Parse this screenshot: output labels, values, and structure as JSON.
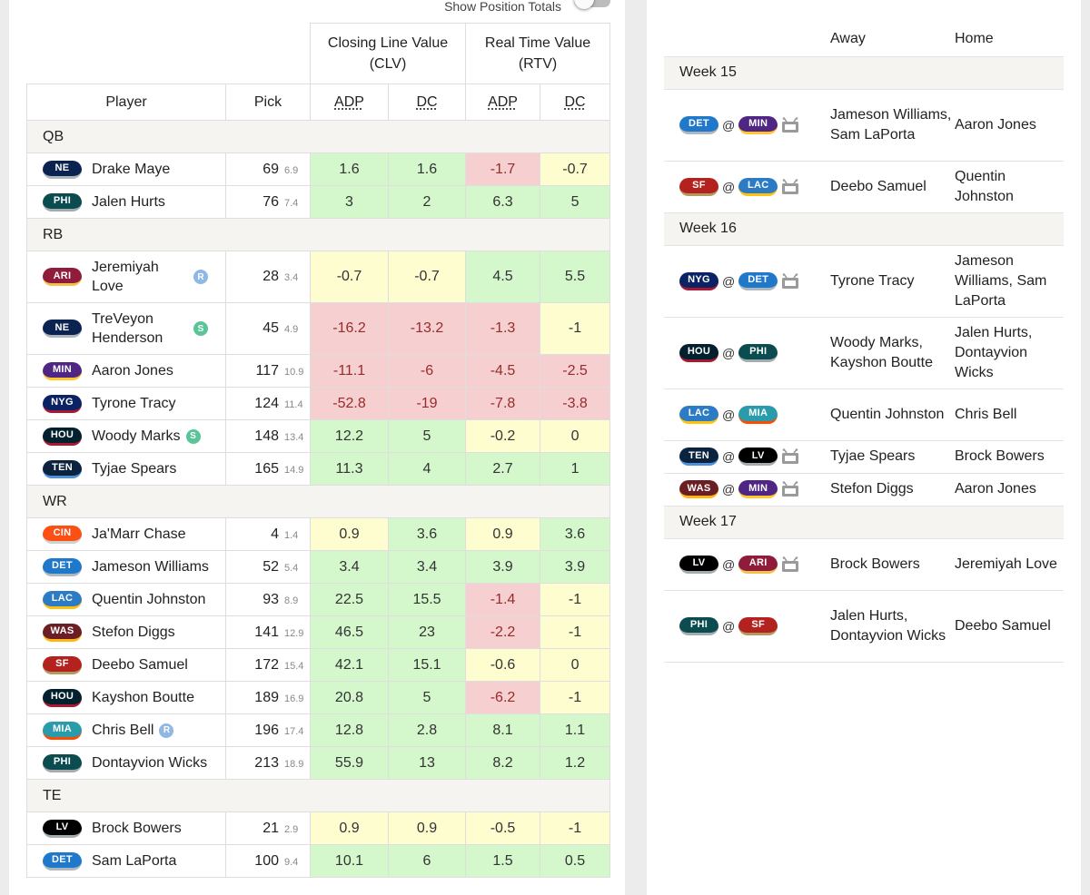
{
  "toggle": {
    "label": "Show Position Totals",
    "on": false
  },
  "players_table": {
    "group_headers": {
      "clv_line1": "Closing Line Value",
      "clv_line2": "(CLV)",
      "rtv_line1": "Real Time Value",
      "rtv_line2": "(RTV)"
    },
    "columns": {
      "player": "Player",
      "pick": "Pick",
      "clv_adp": "ADP",
      "clv_dc": "DC",
      "rtv_adp": "ADP",
      "rtv_dc": "DC"
    },
    "sections": [
      {
        "position": "QB",
        "players": [
          {
            "team": "NE",
            "name": "Drake Maye",
            "pick": "69",
            "round": "6.9",
            "clv_adp": "1.6",
            "clv_dc": "1.6",
            "rtv_adp": "-1.7",
            "rtv_dc": "-0.7",
            "c": [
              "g",
              "g",
              "r",
              "y"
            ]
          },
          {
            "team": "PHI",
            "name": "Jalen Hurts",
            "pick": "76",
            "round": "7.4",
            "clv_adp": "3",
            "clv_dc": "2",
            "rtv_adp": "6.3",
            "rtv_dc": "5",
            "c": [
              "g",
              "g",
              "g",
              "g"
            ]
          }
        ]
      },
      {
        "position": "RB",
        "players": [
          {
            "team": "ARI",
            "name": "Jeremiyah Love",
            "badge": "R",
            "pick": "28",
            "round": "3.4",
            "clv_adp": "-0.7",
            "clv_dc": "-0.7",
            "rtv_adp": "4.5",
            "rtv_dc": "5.5",
            "c": [
              "y",
              "y",
              "g",
              "g"
            ]
          },
          {
            "team": "NE",
            "name": "TreVeyon Henderson",
            "badge": "S",
            "pick": "45",
            "round": "4.9",
            "clv_adp": "-16.2",
            "clv_dc": "-13.2",
            "rtv_adp": "-1.3",
            "rtv_dc": "-1",
            "c": [
              "r",
              "r",
              "r",
              "y"
            ]
          },
          {
            "team": "MIN",
            "name": "Aaron Jones",
            "pick": "117",
            "round": "10.9",
            "clv_adp": "-11.1",
            "clv_dc": "-6",
            "rtv_adp": "-4.5",
            "rtv_dc": "-2.5",
            "c": [
              "r",
              "r",
              "r",
              "r"
            ]
          },
          {
            "team": "NYG",
            "name": "Tyrone Tracy",
            "pick": "124",
            "round": "11.4",
            "clv_adp": "-52.8",
            "clv_dc": "-19",
            "rtv_adp": "-7.8",
            "rtv_dc": "-3.8",
            "c": [
              "r",
              "r",
              "r",
              "r"
            ]
          },
          {
            "team": "HOU",
            "name": "Woody Marks",
            "badge": "S",
            "pick": "148",
            "round": "13.4",
            "clv_adp": "12.2",
            "clv_dc": "5",
            "rtv_adp": "-0.2",
            "rtv_dc": "0",
            "c": [
              "g",
              "g",
              "y",
              "y"
            ]
          },
          {
            "team": "TEN",
            "name": "Tyjae Spears",
            "pick": "165",
            "round": "14.9",
            "clv_adp": "11.3",
            "clv_dc": "4",
            "rtv_adp": "2.7",
            "rtv_dc": "1",
            "c": [
              "g",
              "g",
              "g",
              "g"
            ]
          }
        ]
      },
      {
        "position": "WR",
        "players": [
          {
            "team": "CIN",
            "name": "Ja'Marr Chase",
            "pick": "4",
            "round": "1.4",
            "clv_adp": "0.9",
            "clv_dc": "3.6",
            "rtv_adp": "0.9",
            "rtv_dc": "3.6",
            "c": [
              "y",
              "g",
              "y",
              "g"
            ]
          },
          {
            "team": "DET",
            "name": "Jameson Williams",
            "pick": "52",
            "round": "5.4",
            "clv_adp": "3.4",
            "clv_dc": "3.4",
            "rtv_adp": "3.9",
            "rtv_dc": "3.9",
            "c": [
              "g",
              "g",
              "g",
              "g"
            ]
          },
          {
            "team": "LAC",
            "name": "Quentin Johnston",
            "pick": "93",
            "round": "8.9",
            "clv_adp": "22.5",
            "clv_dc": "15.5",
            "rtv_adp": "-1.4",
            "rtv_dc": "-1",
            "c": [
              "g",
              "g",
              "r",
              "y"
            ]
          },
          {
            "team": "WAS",
            "name": "Stefon Diggs",
            "pick": "141",
            "round": "12.9",
            "clv_adp": "46.5",
            "clv_dc": "23",
            "rtv_adp": "-2.2",
            "rtv_dc": "-1",
            "c": [
              "g",
              "g",
              "r",
              "y"
            ]
          },
          {
            "team": "SF",
            "name": "Deebo Samuel",
            "pick": "172",
            "round": "15.4",
            "clv_adp": "42.1",
            "clv_dc": "15.1",
            "rtv_adp": "-0.6",
            "rtv_dc": "0",
            "c": [
              "g",
              "g",
              "y",
              "y"
            ]
          },
          {
            "team": "HOU",
            "name": "Kayshon Boutte",
            "pick": "189",
            "round": "16.9",
            "clv_adp": "20.8",
            "clv_dc": "5",
            "rtv_adp": "-6.2",
            "rtv_dc": "-1",
            "c": [
              "g",
              "g",
              "r",
              "y"
            ]
          },
          {
            "team": "MIA",
            "name": "Chris Bell",
            "badge": "R",
            "pick": "196",
            "round": "17.4",
            "clv_adp": "12.8",
            "clv_dc": "2.8",
            "rtv_adp": "8.1",
            "rtv_dc": "1.1",
            "c": [
              "g",
              "g",
              "g",
              "g"
            ]
          },
          {
            "team": "PHI",
            "name": "Dontayvion Wicks",
            "pick": "213",
            "round": "18.9",
            "clv_adp": "55.9",
            "clv_dc": "13",
            "rtv_adp": "8.2",
            "rtv_dc": "1.2",
            "c": [
              "g",
              "g",
              "g",
              "g"
            ]
          }
        ]
      },
      {
        "position": "TE",
        "players": [
          {
            "team": "LV",
            "name": "Brock Bowers",
            "pick": "21",
            "round": "2.9",
            "clv_adp": "0.9",
            "clv_dc": "0.9",
            "rtv_adp": "-0.5",
            "rtv_dc": "-1",
            "c": [
              "y",
              "y",
              "y",
              "y"
            ]
          },
          {
            "team": "DET",
            "name": "Sam LaPorta",
            "pick": "100",
            "round": "9.4",
            "clv_adp": "10.1",
            "clv_dc": "6",
            "rtv_adp": "1.5",
            "rtv_dc": "0.5",
            "c": [
              "g",
              "g",
              "g",
              "g"
            ]
          }
        ]
      }
    ]
  },
  "schedule": {
    "columns": {
      "away": "Away",
      "home": "Home"
    },
    "weeks": [
      {
        "label": "Week 15",
        "games": [
          {
            "away_team": "DET",
            "home_team": "MIN",
            "tv": true,
            "away": "Jameson Williams, Sam LaPorta",
            "home": "Aaron Jones"
          },
          {
            "away_team": "SF",
            "home_team": "LAC",
            "tv": true,
            "away": "Deebo Samuel",
            "home": "Quentin Johnston"
          }
        ]
      },
      {
        "label": "Week 16",
        "games": [
          {
            "away_team": "NYG",
            "home_team": "DET",
            "tv": true,
            "away": "Tyrone Tracy",
            "home": "Jameson Williams, Sam LaPorta"
          },
          {
            "away_team": "HOU",
            "home_team": "PHI",
            "tv": false,
            "away": "Woody Marks, Kayshon Boutte",
            "home": "Jalen Hurts, Dontayvion Wicks"
          },
          {
            "away_team": "LAC",
            "home_team": "MIA",
            "tv": false,
            "away": "Quentin Johnston",
            "home": "Chris Bell"
          },
          {
            "away_team": "TEN",
            "home_team": "LV",
            "tv": true,
            "away": "Tyjae Spears",
            "home": "Brock Bowers"
          },
          {
            "away_team": "WAS",
            "home_team": "MIN",
            "tv": true,
            "away": "Stefon Diggs",
            "home": "Aaron Jones"
          }
        ]
      },
      {
        "label": "Week 17",
        "games": [
          {
            "away_team": "LV",
            "home_team": "ARI",
            "tv": true,
            "away": "Brock Bowers",
            "home": "Jeremiyah Love"
          },
          {
            "away_team": "PHI",
            "home_team": "SF",
            "tv": false,
            "away": "Jalen Hurts, Dontayvion Wicks",
            "home": "Deebo Samuel"
          }
        ]
      }
    ]
  },
  "team_colors": {
    "NE": {
      "bg": "#0b2350",
      "accent": "#b0b7bc"
    },
    "PHI": {
      "bg": "#0a4c4f",
      "accent": "#a5acaf"
    },
    "ARI": {
      "bg": "#8f1c3a",
      "accent": "#f2c14e"
    },
    "MIN": {
      "bg": "#4f2683",
      "accent": "#ffc62f"
    },
    "NYG": {
      "bg": "#0b2265",
      "accent": "#a71930"
    },
    "HOU": {
      "bg": "#03202f",
      "accent": "#a71930"
    },
    "TEN": {
      "bg": "#0c2340",
      "accent": "#4b92db"
    },
    "CIN": {
      "bg": "#fb4f14",
      "accent": "#d0d0d0"
    },
    "DET": {
      "bg": "#1f78c9",
      "accent": "#b0b7bc"
    },
    "LAC": {
      "bg": "#2b7cc4",
      "accent": "#ffc20e"
    },
    "WAS": {
      "bg": "#6b1f24",
      "accent": "#ffb612"
    },
    "SF": {
      "bg": "#b3221e",
      "accent": "#b3995d"
    },
    "MIA": {
      "bg": "#2a9bab",
      "accent": "#fc4c02"
    },
    "LV": {
      "bg": "#000000",
      "accent": "#a5acaf"
    }
  }
}
